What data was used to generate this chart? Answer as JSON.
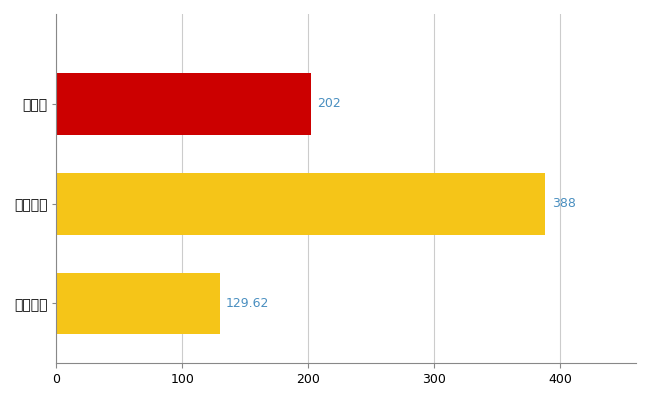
{
  "categories": [
    "愛知県",
    "全国最大",
    "全国平均"
  ],
  "values": [
    202,
    388,
    129.62
  ],
  "bar_colors": [
    "#cc0000",
    "#f5c518",
    "#f5c518"
  ],
  "label_values": [
    "202",
    "388",
    "129.62"
  ],
  "label_color": "#4a8fc0",
  "xlim": [
    0,
    460
  ],
  "xticks": [
    0,
    100,
    200,
    300,
    400
  ],
  "background_color": "#ffffff",
  "grid_color": "#cccccc",
  "bar_height": 0.62
}
